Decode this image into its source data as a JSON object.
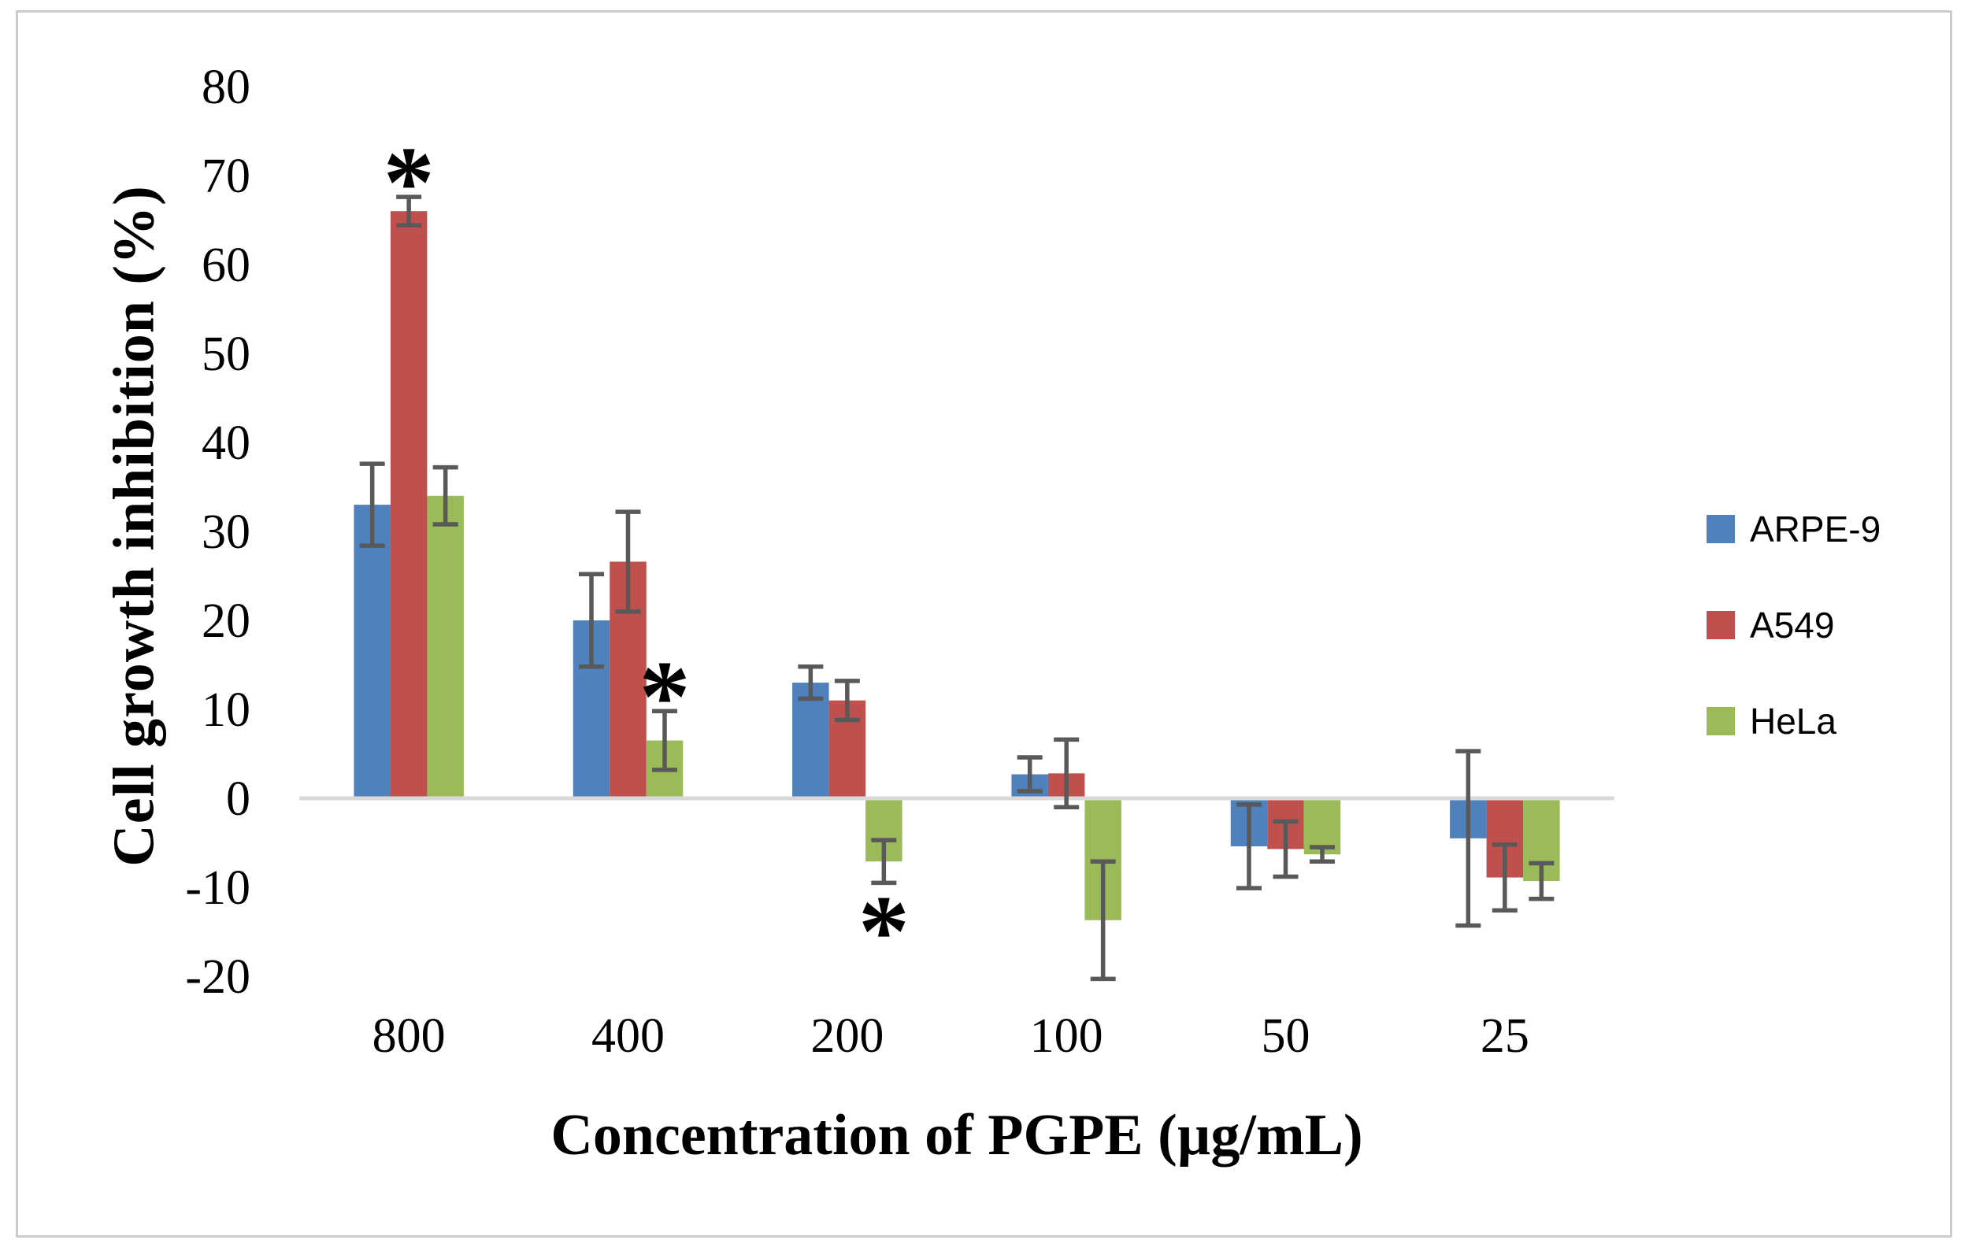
{
  "chart_data": {
    "type": "bar",
    "title": "",
    "xlabel": "Concentration of PGPE (µg/mL)",
    "ylabel": "Cell growth inhibition (%)",
    "categories": [
      "800",
      "400",
      "200",
      "100",
      "50",
      "25"
    ],
    "series": [
      {
        "name": "ARPE-9",
        "color": "#4F81BD",
        "values": [
          33.0,
          20.0,
          13.0,
          2.7,
          -5.4,
          -4.5
        ],
        "errors": [
          4.6,
          5.2,
          1.8,
          1.9,
          4.7,
          9.8
        ]
      },
      {
        "name": "A549",
        "color": "#C0504D",
        "values": [
          66.0,
          26.6,
          11.0,
          2.8,
          -5.7,
          -8.9
        ],
        "errors": [
          1.6,
          5.6,
          2.2,
          3.8,
          3.1,
          3.7
        ]
      },
      {
        "name": "HeLa",
        "color": "#9BBB59",
        "values": [
          34.0,
          6.5,
          -7.1,
          -13.7,
          -6.3,
          -9.3
        ],
        "errors": [
          3.2,
          3.3,
          2.4,
          6.6,
          0.8,
          2.0
        ]
      }
    ],
    "ylim": [
      -20,
      80
    ],
    "yticks": [
      80,
      70,
      60,
      50,
      40,
      30,
      20,
      10,
      0,
      -10,
      -20
    ],
    "ytick_labels": [
      "80",
      "70",
      "60",
      "50",
      "40",
      "30",
      "20",
      "10",
      "0",
      "-10",
      "-20"
    ],
    "grid": false,
    "legend_position": "right",
    "error_bar_color": "#595959",
    "axis_line_color": "#D9D9D9",
    "significance_markers": [
      {
        "category": "800",
        "series": "A549",
        "placement": "above",
        "symbol": "*"
      },
      {
        "category": "400",
        "series": "HeLa",
        "placement": "above",
        "symbol": "*"
      },
      {
        "category": "200",
        "series": "HeLa",
        "placement": "below",
        "symbol": "*"
      }
    ]
  }
}
